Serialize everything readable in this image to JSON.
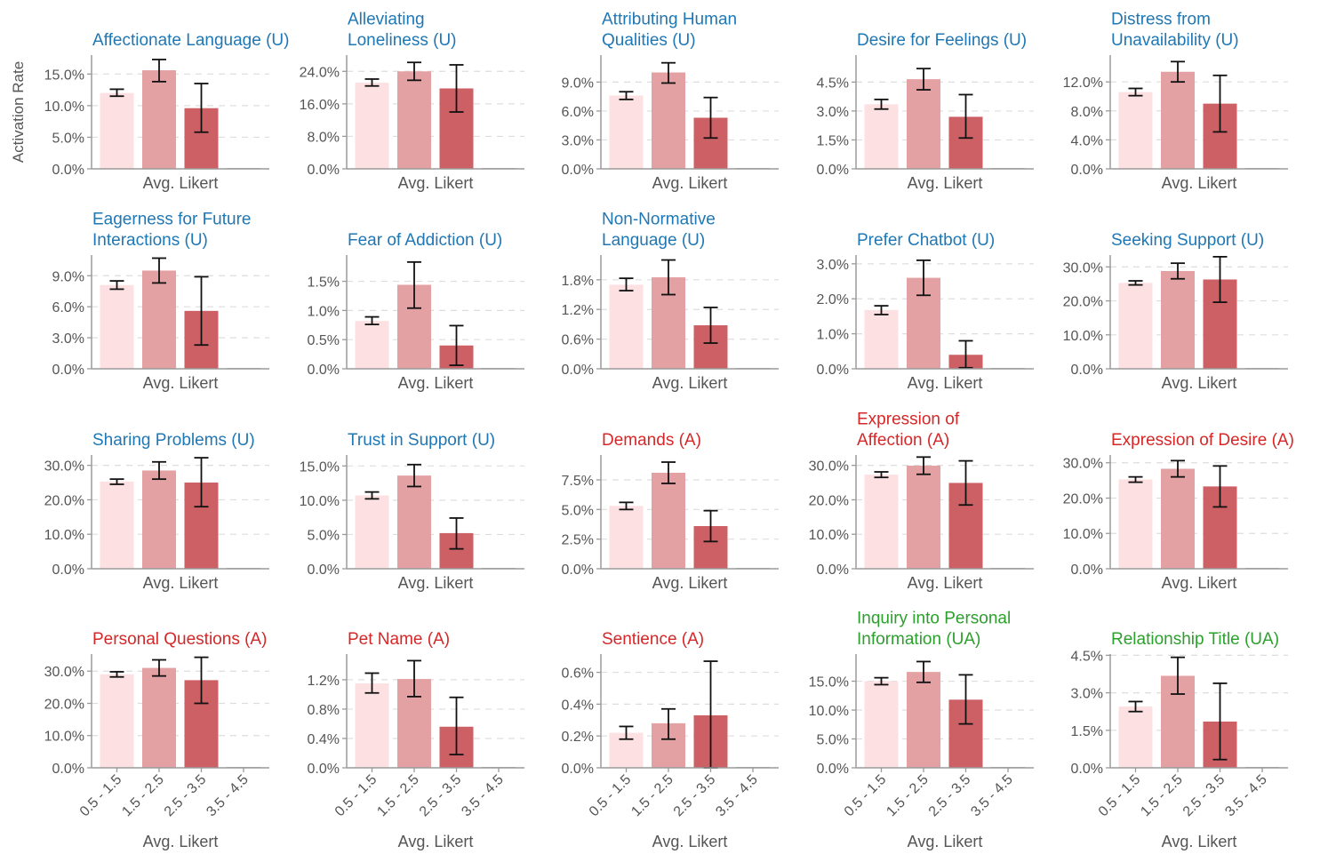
{
  "figure": {
    "y_axis_label": "Activation Rate",
    "x_axis_label": "Avg. Likert",
    "categories": [
      "0.5 - 1.5",
      "1.5 - 2.5",
      "2.5 - 3.5",
      "3.5 - 4.5"
    ],
    "bar_colors": [
      "#fde0e2",
      "#e3a1a4",
      "#cd6065",
      "#bbbbbb"
    ],
    "group_colors": {
      "U": "#1f77b4",
      "A": "#d62728",
      "UA": "#2ca02c"
    }
  },
  "chart_data": [
    {
      "type": "bar",
      "title": [
        "Affectionate Language (U)"
      ],
      "group": "U",
      "ylim": [
        0,
        18
      ],
      "yticks": [
        0,
        5,
        10,
        15
      ],
      "tick_decimals": 1,
      "tick_labels": [
        "0.0%",
        "5.0%",
        "10.0%",
        "15.0%"
      ],
      "values": [
        12.0,
        15.6,
        9.6,
        0.0
      ],
      "err_low": [
        11.5,
        13.8,
        5.8,
        null
      ],
      "err_high": [
        12.6,
        17.3,
        13.5,
        null
      ]
    },
    {
      "type": "bar",
      "title": [
        "Alleviating",
        "Loneliness (U)"
      ],
      "group": "U",
      "ylim": [
        0,
        28
      ],
      "yticks": [
        0,
        8,
        16,
        24
      ],
      "tick_decimals": 1,
      "tick_labels": [
        "0.0%",
        "8.0%",
        "16.0%",
        "24.0%"
      ],
      "values": [
        21.2,
        24.0,
        19.8,
        0.0
      ],
      "err_low": [
        20.4,
        21.8,
        14.0,
        null
      ],
      "err_high": [
        22.1,
        26.2,
        25.6,
        null
      ]
    },
    {
      "type": "bar",
      "title": [
        "Attributing Human",
        "Qualities (U)"
      ],
      "group": "U",
      "ylim": [
        0,
        11.8
      ],
      "yticks": [
        0,
        3,
        6,
        9
      ],
      "tick_decimals": 1,
      "tick_labels": [
        "0.0%",
        "3.0%",
        "6.0%",
        "9.0%"
      ],
      "values": [
        7.6,
        10.0,
        5.3,
        0.0
      ],
      "err_low": [
        7.2,
        8.9,
        3.2,
        null
      ],
      "err_high": [
        8.0,
        11.0,
        7.4,
        null
      ]
    },
    {
      "type": "bar",
      "title": [
        "Desire for Feelings (U)"
      ],
      "group": "U",
      "ylim": [
        0,
        5.9
      ],
      "yticks": [
        0,
        1.5,
        3,
        4.5
      ],
      "tick_decimals": 1,
      "tick_labels": [
        "0.0%",
        "1.5%",
        "3.0%",
        "4.5%"
      ],
      "values": [
        3.35,
        4.65,
        2.7,
        0.0
      ],
      "err_low": [
        3.1,
        4.1,
        1.6,
        null
      ],
      "err_high": [
        3.6,
        5.2,
        3.85,
        null
      ]
    },
    {
      "type": "bar",
      "title": [
        "Distress from",
        "Unavailability (U)"
      ],
      "group": "U",
      "ylim": [
        0,
        15.7
      ],
      "yticks": [
        0,
        4,
        8,
        12
      ],
      "tick_decimals": 1,
      "tick_labels": [
        "0.0%",
        "4.0%",
        "8.0%",
        "12.0%"
      ],
      "values": [
        10.6,
        13.4,
        9.0,
        0.0
      ],
      "err_low": [
        10.1,
        12.0,
        5.1,
        null
      ],
      "err_high": [
        11.1,
        14.8,
        12.9,
        null
      ]
    },
    {
      "type": "bar",
      "title": [
        "Eagerness for Future",
        "Interactions (U)"
      ],
      "group": "U",
      "ylim": [
        0,
        11
      ],
      "yticks": [
        0,
        3,
        6,
        9
      ],
      "tick_decimals": 1,
      "tick_labels": [
        "0.0%",
        "3.0%",
        "6.0%",
        "9.0%"
      ],
      "values": [
        8.1,
        9.5,
        5.6,
        0.0
      ],
      "err_low": [
        7.7,
        8.3,
        2.3,
        null
      ],
      "err_high": [
        8.5,
        10.7,
        8.9,
        null
      ]
    },
    {
      "type": "bar",
      "title": [
        "Fear of Addiction (U)"
      ],
      "group": "U",
      "ylim": [
        0,
        1.95
      ],
      "yticks": [
        0,
        0.5,
        1.0,
        1.5
      ],
      "tick_decimals": 1,
      "tick_labels": [
        "0.0%",
        "0.5%",
        "1.0%",
        "1.5%"
      ],
      "values": [
        0.82,
        1.44,
        0.4,
        0.0
      ],
      "err_low": [
        0.76,
        1.04,
        0.06,
        null
      ],
      "err_high": [
        0.89,
        1.83,
        0.74,
        null
      ]
    },
    {
      "type": "bar",
      "title": [
        "Non-Normative",
        "Language (U)"
      ],
      "group": "U",
      "ylim": [
        0,
        2.3
      ],
      "yticks": [
        0,
        0.6,
        1.2,
        1.8
      ],
      "tick_decimals": 1,
      "tick_labels": [
        "0.0%",
        "0.6%",
        "1.2%",
        "1.8%"
      ],
      "values": [
        1.7,
        1.85,
        0.88,
        0.0
      ],
      "err_low": [
        1.58,
        1.5,
        0.52,
        null
      ],
      "err_high": [
        1.83,
        2.2,
        1.24,
        null
      ]
    },
    {
      "type": "bar",
      "title": [
        "Prefer Chatbot (U)"
      ],
      "group": "U",
      "ylim": [
        0,
        3.25
      ],
      "yticks": [
        0,
        1,
        2,
        3
      ],
      "tick_decimals": 1,
      "tick_labels": [
        "0.0%",
        "1.0%",
        "2.0%",
        "3.0%"
      ],
      "values": [
        1.68,
        2.6,
        0.4,
        0.0
      ],
      "err_low": [
        1.55,
        2.1,
        0.03,
        null
      ],
      "err_high": [
        1.8,
        3.1,
        0.8,
        null
      ]
    },
    {
      "type": "bar",
      "title": [
        "Seeking Support (U)"
      ],
      "group": "U",
      "ylim": [
        0,
        33.5
      ],
      "yticks": [
        0,
        10,
        20,
        30
      ],
      "tick_decimals": 1,
      "tick_labels": [
        "0.0%",
        "10.0%",
        "20.0%",
        "30.0%"
      ],
      "values": [
        25.3,
        28.8,
        26.3,
        0.0
      ],
      "err_low": [
        24.7,
        26.5,
        19.6,
        null
      ],
      "err_high": [
        25.9,
        31.1,
        33.0,
        null
      ]
    },
    {
      "type": "bar",
      "title": [
        "Sharing Problems (U)"
      ],
      "group": "U",
      "ylim": [
        0,
        33
      ],
      "yticks": [
        0,
        10,
        20,
        30
      ],
      "tick_decimals": 1,
      "tick_labels": [
        "0.0%",
        "10.0%",
        "20.0%",
        "30.0%"
      ],
      "values": [
        25.3,
        28.5,
        25.0,
        0.0
      ],
      "err_low": [
        24.5,
        26.0,
        18.0,
        null
      ],
      "err_high": [
        26.0,
        31.0,
        32.2,
        null
      ]
    },
    {
      "type": "bar",
      "title": [
        "Trust in Support (U)"
      ],
      "group": "U",
      "ylim": [
        0,
        16.6
      ],
      "yticks": [
        0,
        5,
        10,
        15
      ],
      "tick_decimals": 1,
      "tick_labels": [
        "0.0%",
        "5.0%",
        "10.0%",
        "15.0%"
      ],
      "values": [
        10.7,
        13.6,
        5.2,
        0.0
      ],
      "err_low": [
        10.2,
        12.0,
        2.9,
        null
      ],
      "err_high": [
        11.2,
        15.2,
        7.4,
        null
      ]
    },
    {
      "type": "bar",
      "title": [
        "Demands (A)"
      ],
      "group": "A",
      "ylim": [
        0,
        9.6
      ],
      "yticks": [
        0,
        2.5,
        5.0,
        7.5
      ],
      "tick_decimals": 1,
      "tick_labels": [
        "0.0%",
        "2.5%",
        "5.0%",
        "7.5%"
      ],
      "values": [
        5.3,
        8.1,
        3.6,
        0.0
      ],
      "err_low": [
        5.0,
        7.2,
        2.3,
        null
      ],
      "err_high": [
        5.6,
        9.0,
        4.9,
        null
      ]
    },
    {
      "type": "bar",
      "title": [
        "Expression of",
        "Affection (A)"
      ],
      "group": "A",
      "ylim": [
        0,
        33
      ],
      "yticks": [
        0,
        10,
        20,
        30
      ],
      "tick_decimals": 1,
      "tick_labels": [
        "0.0%",
        "10.0%",
        "20.0%",
        "30.0%"
      ],
      "values": [
        27.3,
        29.9,
        24.9,
        0.0
      ],
      "err_low": [
        26.5,
        27.4,
        18.5,
        null
      ],
      "err_high": [
        28.1,
        32.4,
        31.3,
        null
      ]
    },
    {
      "type": "bar",
      "title": [
        "Expression of Desire (A)"
      ],
      "group": "A",
      "ylim": [
        0,
        32.2
      ],
      "yticks": [
        0,
        10,
        20,
        30
      ],
      "tick_decimals": 1,
      "tick_labels": [
        "0.0%",
        "10.0%",
        "20.0%",
        "30.0%"
      ],
      "values": [
        25.3,
        28.3,
        23.3,
        0.0
      ],
      "err_low": [
        24.5,
        26.0,
        17.5,
        null
      ],
      "err_high": [
        26.0,
        30.6,
        29.1,
        null
      ]
    },
    {
      "type": "bar",
      "title": [
        "Personal Questions (A)"
      ],
      "group": "A",
      "ylim": [
        0,
        35.3
      ],
      "yticks": [
        0,
        10,
        20,
        30
      ],
      "tick_decimals": 1,
      "tick_labels": [
        "0.0%",
        "10.0%",
        "20.0%",
        "30.0%"
      ],
      "values": [
        29.0,
        31.0,
        27.2,
        0.0
      ],
      "err_low": [
        28.2,
        28.5,
        20.0,
        null
      ],
      "err_high": [
        29.8,
        33.5,
        34.3,
        null
      ]
    },
    {
      "type": "bar",
      "title": [
        "Pet Name (A)"
      ],
      "group": "A",
      "ylim": [
        0,
        1.55
      ],
      "yticks": [
        0,
        0.4,
        0.8,
        1.2
      ],
      "tick_decimals": 1,
      "tick_labels": [
        "0.0%",
        "0.4%",
        "0.8%",
        "1.2%"
      ],
      "values": [
        1.15,
        1.21,
        0.56,
        0.0
      ],
      "err_low": [
        1.02,
        0.97,
        0.18,
        null
      ],
      "err_high": [
        1.29,
        1.46,
        0.96,
        null
      ]
    },
    {
      "type": "bar",
      "title": [
        "Sentience (A)"
      ],
      "group": "A",
      "ylim": [
        0,
        0.715
      ],
      "yticks": [
        0,
        0.2,
        0.4,
        0.6
      ],
      "tick_decimals": 1,
      "tick_labels": [
        "0.0%",
        "0.2%",
        "0.4%",
        "0.6%"
      ],
      "values": [
        0.22,
        0.28,
        0.33,
        0.0
      ],
      "err_low": [
        0.18,
        0.18,
        0.0,
        null
      ],
      "err_high": [
        0.26,
        0.37,
        0.67,
        null
      ]
    },
    {
      "type": "bar",
      "title": [
        "Inquiry into Personal",
        "Information (UA)"
      ],
      "group": "UA",
      "ylim": [
        0,
        19.7
      ],
      "yticks": [
        0,
        5,
        10,
        15
      ],
      "tick_decimals": 1,
      "tick_labels": [
        "0.0%",
        "5.0%",
        "10.0%",
        "15.0%"
      ],
      "values": [
        15.0,
        16.6,
        11.8,
        0.0
      ],
      "err_low": [
        14.4,
        14.8,
        7.6,
        null
      ],
      "err_high": [
        15.6,
        18.4,
        16.1,
        null
      ]
    },
    {
      "type": "bar",
      "title": [
        "Relationship Title (UA)"
      ],
      "group": "UA",
      "ylim": [
        0,
        4.55
      ],
      "yticks": [
        0,
        1.5,
        3.0,
        4.5
      ],
      "tick_decimals": 1,
      "tick_labels": [
        "0.0%",
        "1.5%",
        "3.0%",
        "4.5%"
      ],
      "values": [
        2.45,
        3.68,
        1.85,
        0.0
      ],
      "err_low": [
        2.25,
        2.95,
        0.33,
        null
      ],
      "err_high": [
        2.65,
        4.42,
        3.38,
        null
      ]
    }
  ]
}
